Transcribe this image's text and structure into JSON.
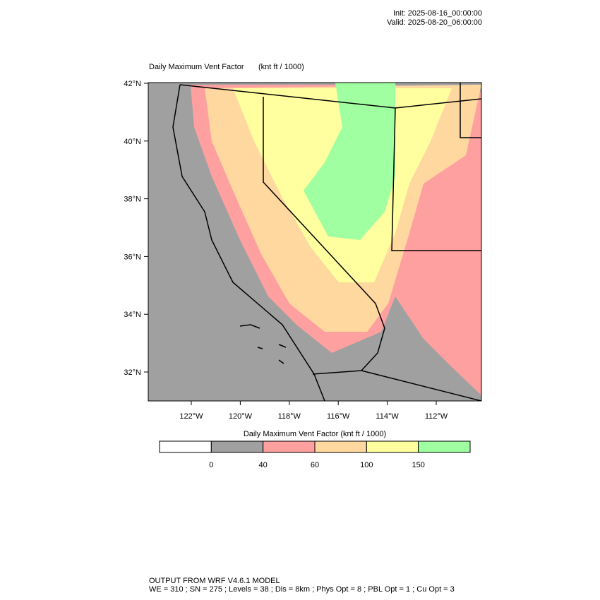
{
  "header": {
    "init": "Init: 2025-08-16_00:00:00",
    "valid": "Valid: 2025-08-20_06:00:00"
  },
  "map": {
    "title": "Daily Maximum Vent Factor",
    "units": "(knt ft / 1000)",
    "lat_labels": [
      "42°N",
      "40°N",
      "38°N",
      "36°N",
      "34°N",
      "32°N"
    ],
    "lon_labels": [
      "122°W",
      "120°W",
      "118°W",
      "116°W",
      "114°W",
      "112°W"
    ]
  },
  "colorbar": {
    "title": "Daily Maximum Vent Factor  (knt ft / 1000)",
    "colors": [
      "#ffffff",
      "#a0a0a0",
      "#ffa0a0",
      "#ffd8a0",
      "#ffff a0",
      "#a0ffa0"
    ],
    "labels": [
      "0",
      "40",
      "60",
      "100",
      "150"
    ]
  },
  "footer": {
    "line1": "OUTPUT FROM WRF V4.6.1 MODEL",
    "line2": "WE = 310 ; SN = 275 ; Levels = 38 ; Dis = 8km ; Phys Opt = 8 ; PBL Opt = 1 ; Cu Opt = 3"
  }
}
